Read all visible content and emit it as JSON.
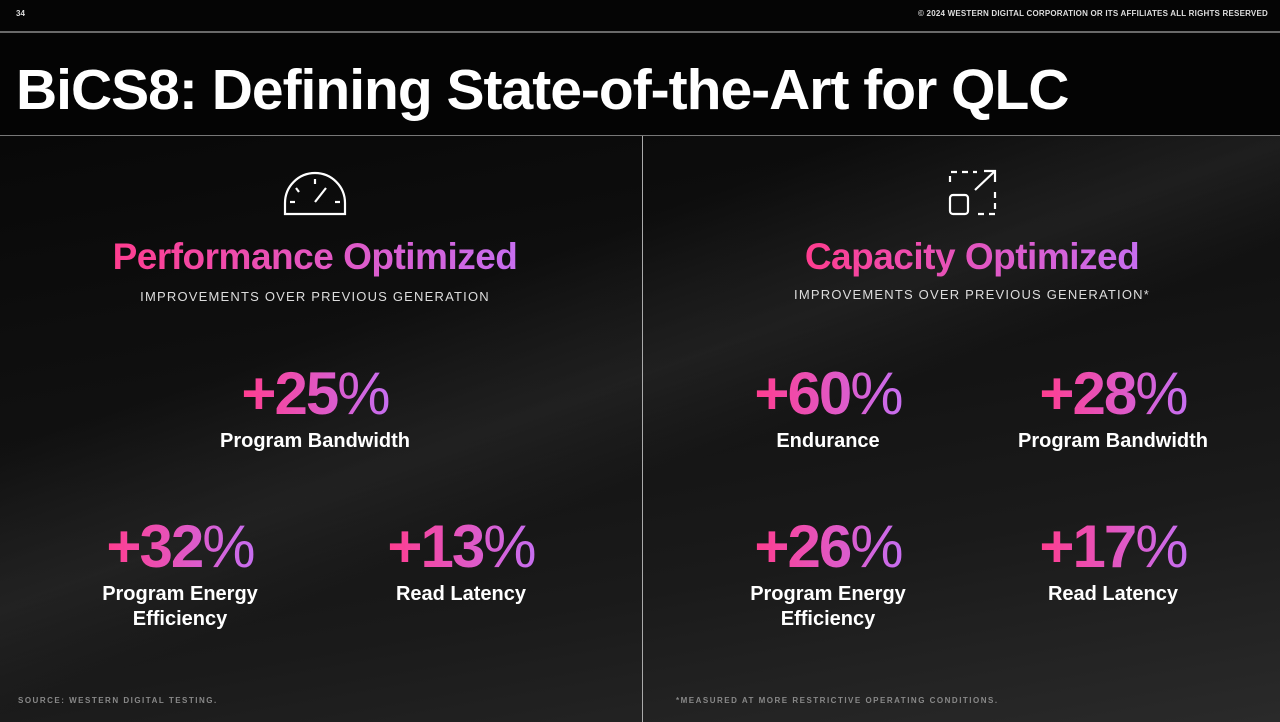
{
  "header": {
    "page_number": "34",
    "copyright": "© 2024 WESTERN DIGITAL CORPORATION OR ITS AFFILIATES  ALL RIGHTS RESERVED"
  },
  "title": "BiCS8: Defining State-of-the-Art for QLC",
  "colors": {
    "gradient_start": "#ff3d8f",
    "gradient_end": "#c76ef0",
    "background": "#050505"
  },
  "left": {
    "icon": "speedometer-icon",
    "heading": "Performance Optimized",
    "subtitle": "IMPROVEMENTS OVER PREVIOUS GENERATION",
    "stats": [
      {
        "value": "+25",
        "unit": "%",
        "label": "Program Bandwidth"
      },
      {
        "value": "+32",
        "unit": "%",
        "label": "Program Energy Efficiency"
      },
      {
        "value": "+13",
        "unit": "%",
        "label": "Read Latency"
      }
    ]
  },
  "right": {
    "icon": "expand-resize-icon",
    "heading": "Capacity Optimized",
    "subtitle": "IMPROVEMENTS OVER PREVIOUS GENERATION*",
    "stats": [
      {
        "value": "+60",
        "unit": "%",
        "label": "Endurance"
      },
      {
        "value": "+28",
        "unit": "%",
        "label": "Program Bandwidth"
      },
      {
        "value": "+26",
        "unit": "%",
        "label": "Program Energy Efficiency"
      },
      {
        "value": "+17",
        "unit": "%",
        "label": "Read Latency"
      }
    ]
  },
  "footer": {
    "source": "SOURCE: WESTERN DIGITAL TESTING.",
    "note": "*MEASURED AT MORE RESTRICTIVE OPERATING CONDITIONS."
  }
}
